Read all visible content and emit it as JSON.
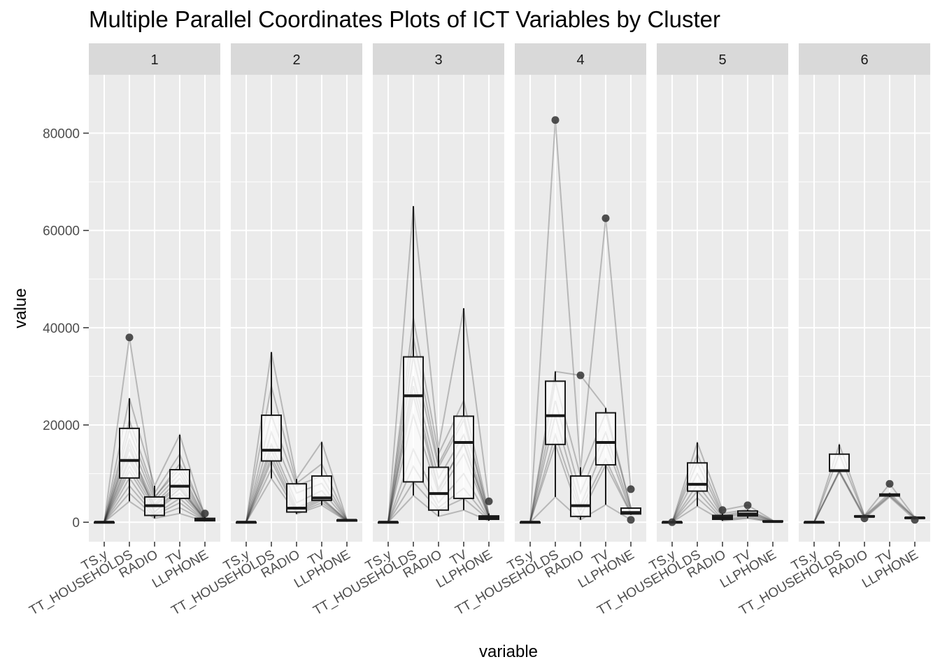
{
  "chart_data": {
    "type": "parallel-coordinates-boxplot",
    "title": "Multiple Parallel Coordinates Plots of ICT Variables by Cluster",
    "xlabel": "variable",
    "ylabel": "value",
    "ylim": [
      -4000,
      92000
    ],
    "yticks": [
      0,
      20000,
      40000,
      60000,
      80000
    ],
    "ytick_labels": [
      "0",
      "20000",
      "40000",
      "60000",
      "80000"
    ],
    "variables": [
      "TS.y",
      "TT_HOUSEHOLDS",
      "RADIO",
      "TV",
      "LLPHONE"
    ],
    "grid": true,
    "legend": "none",
    "colors": {
      "panel_bg": "#ebebeb",
      "grid": "#ffffff",
      "strip_bg": "#d9d9d9",
      "line": "#333333",
      "box_fill": "#ffffff",
      "box_stroke": "#1a1a1a",
      "outlier": "#333333"
    },
    "panels": [
      {
        "label": "1",
        "boxes": [
          {
            "variable": "TS.y",
            "lower": 0,
            "q1": 0,
            "median": 0,
            "q3": 0,
            "upper": 0,
            "outliers": []
          },
          {
            "variable": "TT_HOUSEHOLDS",
            "lower": 4300,
            "q1": 9100,
            "median": 12700,
            "q3": 19300,
            "upper": 25500,
            "outliers": [
              38000
            ]
          },
          {
            "variable": "RADIO",
            "lower": 800,
            "q1": 1400,
            "median": 3400,
            "q3": 5200,
            "upper": 7500,
            "outliers": []
          },
          {
            "variable": "TV",
            "lower": 1800,
            "q1": 4900,
            "median": 7400,
            "q3": 10800,
            "upper": 18000,
            "outliers": []
          },
          {
            "variable": "LLPHONE",
            "lower": 200,
            "q1": 300,
            "median": 500,
            "q3": 800,
            "upper": 1100,
            "outliers": [
              1800
            ]
          }
        ],
        "lines": [
          [
            0,
            38000,
            5000,
            12000,
            1800
          ],
          [
            0,
            25500,
            7500,
            18000,
            1100
          ],
          [
            0,
            21000,
            6000,
            14000,
            900
          ],
          [
            0,
            19000,
            5200,
            11000,
            800
          ],
          [
            0,
            17000,
            4500,
            10000,
            700
          ],
          [
            0,
            15000,
            3800,
            9000,
            600
          ],
          [
            0,
            13500,
            3500,
            8000,
            500
          ],
          [
            0,
            12700,
            3300,
            7400,
            500
          ],
          [
            0,
            11500,
            2800,
            6800,
            450
          ],
          [
            0,
            10500,
            2200,
            6000,
            400
          ],
          [
            0,
            9100,
            1600,
            4900,
            350
          ],
          [
            0,
            7500,
            1400,
            4000,
            300
          ],
          [
            0,
            6000,
            1100,
            3000,
            250
          ],
          [
            0,
            4300,
            800,
            1800,
            200
          ],
          [
            0,
            16000,
            2000,
            7000,
            600
          ]
        ]
      },
      {
        "label": "2",
        "boxes": [
          {
            "variable": "TS.y",
            "lower": 0,
            "q1": 0,
            "median": 0,
            "q3": 0,
            "upper": 0,
            "outliers": []
          },
          {
            "variable": "TT_HOUSEHOLDS",
            "lower": 9000,
            "q1": 12600,
            "median": 14800,
            "q3": 22000,
            "upper": 35000,
            "outliers": []
          },
          {
            "variable": "RADIO",
            "lower": 1700,
            "q1": 2100,
            "median": 2900,
            "q3": 7900,
            "upper": 8900,
            "outliers": []
          },
          {
            "variable": "TV",
            "lower": 3500,
            "q1": 4500,
            "median": 5000,
            "q3": 9500,
            "upper": 16500,
            "outliers": []
          },
          {
            "variable": "LLPHONE",
            "lower": 200,
            "q1": 250,
            "median": 400,
            "q3": 450,
            "upper": 500,
            "outliers": []
          }
        ],
        "lines": [
          [
            0,
            35000,
            8900,
            16500,
            500
          ],
          [
            0,
            28000,
            8000,
            12000,
            480
          ],
          [
            0,
            22000,
            7500,
            9500,
            450
          ],
          [
            0,
            18500,
            6000,
            8000,
            420
          ],
          [
            0,
            16000,
            4000,
            6500,
            400
          ],
          [
            0,
            14800,
            3000,
            5000,
            380
          ],
          [
            0,
            13500,
            2500,
            4800,
            350
          ],
          [
            0,
            12600,
            2100,
            4500,
            300
          ],
          [
            0,
            11000,
            1900,
            4000,
            250
          ],
          [
            0,
            9000,
            1700,
            3500,
            200
          ]
        ]
      },
      {
        "label": "3",
        "boxes": [
          {
            "variable": "TS.y",
            "lower": 0,
            "q1": 0,
            "median": 0,
            "q3": 0,
            "upper": 0,
            "outliers": []
          },
          {
            "variable": "TT_HOUSEHOLDS",
            "lower": 5500,
            "q1": 8300,
            "median": 26000,
            "q3": 34000,
            "upper": 65000,
            "outliers": []
          },
          {
            "variable": "RADIO",
            "lower": 1200,
            "q1": 2500,
            "median": 5900,
            "q3": 11300,
            "upper": 15300,
            "outliers": []
          },
          {
            "variable": "TV",
            "lower": 2500,
            "q1": 4900,
            "median": 16400,
            "q3": 21800,
            "upper": 44000,
            "outliers": []
          },
          {
            "variable": "LLPHONE",
            "lower": 300,
            "q1": 600,
            "median": 1000,
            "q3": 1300,
            "upper": 1800,
            "outliers": [
              4300
            ]
          }
        ],
        "lines": [
          [
            0,
            65000,
            15300,
            44000,
            4300
          ],
          [
            0,
            42000,
            14000,
            25000,
            1800
          ],
          [
            0,
            38000,
            12000,
            22000,
            1500
          ],
          [
            0,
            34000,
            11300,
            21000,
            1300
          ],
          [
            0,
            30000,
            9000,
            18000,
            1200
          ],
          [
            0,
            26000,
            6500,
            16400,
            1000
          ],
          [
            0,
            22000,
            5900,
            14000,
            900
          ],
          [
            0,
            15000,
            4000,
            10000,
            700
          ],
          [
            0,
            11500,
            3000,
            7000,
            600
          ],
          [
            0,
            8300,
            2500,
            4900,
            500
          ],
          [
            0,
            5500,
            1200,
            2500,
            300
          ],
          [
            0,
            28000,
            7000,
            16000,
            1100
          ]
        ]
      },
      {
        "label": "4",
        "boxes": [
          {
            "variable": "TS.y",
            "lower": 0,
            "q1": 0,
            "median": 0,
            "q3": 0,
            "upper": 0,
            "outliers": []
          },
          {
            "variable": "TT_HOUSEHOLDS",
            "lower": 5200,
            "q1": 16000,
            "median": 21900,
            "q3": 29000,
            "upper": 31000,
            "outliers": [
              82700
            ]
          },
          {
            "variable": "RADIO",
            "lower": 500,
            "q1": 1200,
            "median": 3400,
            "q3": 9500,
            "upper": 11300,
            "outliers": [
              30200
            ]
          },
          {
            "variable": "TV",
            "lower": 3600,
            "q1": 11800,
            "median": 16400,
            "q3": 22500,
            "upper": 23500,
            "outliers": [
              62500
            ]
          },
          {
            "variable": "LLPHONE",
            "lower": 1500,
            "q1": 1700,
            "median": 2000,
            "q3": 2900,
            "upper": 3000,
            "outliers": [
              6800,
              500
            ]
          }
        ],
        "lines": [
          [
            0,
            82700,
            11000,
            62500,
            6800
          ],
          [
            0,
            31000,
            30200,
            23500,
            3000
          ],
          [
            0,
            29000,
            9500,
            22500,
            2900
          ],
          [
            0,
            25000,
            6000,
            18500,
            2500
          ],
          [
            0,
            21900,
            3400,
            16400,
            2000
          ],
          [
            0,
            18000,
            2500,
            13000,
            1800
          ],
          [
            0,
            16000,
            1200,
            11800,
            1700
          ],
          [
            0,
            5200,
            500,
            3600,
            500
          ]
        ]
      },
      {
        "label": "5",
        "boxes": [
          {
            "variable": "TS.y",
            "lower": 0,
            "q1": 0,
            "median": 0,
            "q3": 0,
            "upper": 0,
            "outliers": [
              0
            ]
          },
          {
            "variable": "TT_HOUSEHOLDS",
            "lower": 3300,
            "q1": 6400,
            "median": 7800,
            "q3": 12200,
            "upper": 16400,
            "outliers": []
          },
          {
            "variable": "RADIO",
            "lower": 300,
            "q1": 600,
            "median": 1000,
            "q3": 1400,
            "upper": 1800,
            "outliers": [
              2500
            ]
          },
          {
            "variable": "TV",
            "lower": 800,
            "q1": 1300,
            "median": 1700,
            "q3": 2300,
            "upper": 2600,
            "outliers": [
              3500
            ]
          },
          {
            "variable": "LLPHONE",
            "lower": 50,
            "q1": 100,
            "median": 150,
            "q3": 250,
            "upper": 400,
            "outliers": []
          }
        ],
        "lines": [
          [
            0,
            16400,
            2500,
            3500,
            400
          ],
          [
            0,
            14000,
            1800,
            2600,
            300
          ],
          [
            0,
            12200,
            1400,
            2300,
            250
          ],
          [
            0,
            10000,
            1200,
            2000,
            200
          ],
          [
            0,
            7800,
            1000,
            1700,
            150
          ],
          [
            0,
            6400,
            600,
            1300,
            100
          ],
          [
            0,
            5000,
            400,
            1000,
            80
          ],
          [
            0,
            3300,
            300,
            800,
            50
          ]
        ]
      },
      {
        "label": "6",
        "boxes": [
          {
            "variable": "TS.y",
            "lower": 0,
            "q1": 0,
            "median": 0,
            "q3": 0,
            "upper": 0,
            "outliers": []
          },
          {
            "variable": "TT_HOUSEHOLDS",
            "lower": 10300,
            "q1": 10500,
            "median": 10600,
            "q3": 14000,
            "upper": 16000,
            "outliers": []
          },
          {
            "variable": "RADIO",
            "lower": 1000,
            "q1": 1100,
            "median": 1200,
            "q3": 1300,
            "upper": 1400,
            "outliers": [
              800
            ]
          },
          {
            "variable": "TV",
            "lower": 5200,
            "q1": 5400,
            "median": 5600,
            "q3": 5800,
            "upper": 6000,
            "outliers": [
              7900
            ]
          },
          {
            "variable": "LLPHONE",
            "lower": 800,
            "q1": 850,
            "median": 900,
            "q3": 950,
            "upper": 1000,
            "outliers": [
              500
            ]
          }
        ],
        "lines": [
          [
            0,
            16000,
            1400,
            7900,
            1000
          ],
          [
            0,
            14000,
            1300,
            6000,
            950
          ],
          [
            0,
            10600,
            1200,
            5600,
            900
          ],
          [
            0,
            10500,
            1000,
            5400,
            850
          ],
          [
            0,
            10300,
            800,
            5200,
            500
          ]
        ]
      }
    ]
  }
}
